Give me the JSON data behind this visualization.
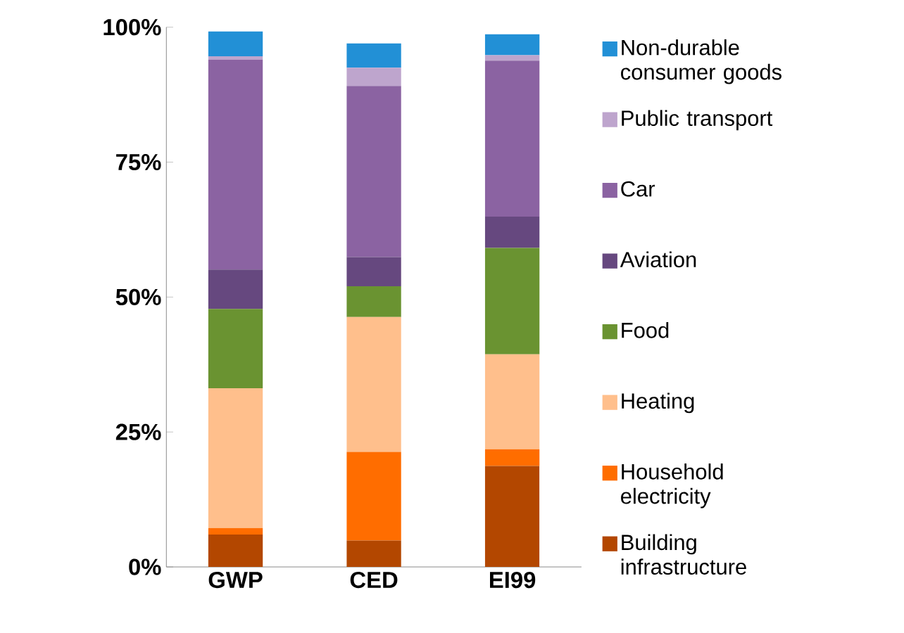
{
  "chart_data": {
    "type": "bar",
    "stacked": true,
    "categories": [
      "GWP",
      "CED",
      "EI99"
    ],
    "ylim": [
      0,
      100
    ],
    "yticks": [
      {
        "value": 0,
        "label": "0%"
      },
      {
        "value": 25,
        "label": "25%"
      },
      {
        "value": 50,
        "label": "50%"
      },
      {
        "value": 75,
        "label": "75%"
      },
      {
        "value": 100,
        "label": "100%"
      }
    ],
    "legend": "right",
    "grid": false,
    "series": [
      {
        "name": "Building infrastructure",
        "color": "#b34700",
        "values": [
          6.0,
          4.9,
          18.7
        ]
      },
      {
        "name": "Household electricity",
        "color": "#ff6d00",
        "values": [
          1.2,
          16.4,
          3.1
        ]
      },
      {
        "name": "Heating",
        "color": "#ffbf8c",
        "values": [
          25.9,
          25.0,
          17.6
        ]
      },
      {
        "name": "Food",
        "color": "#6a9331",
        "values": [
          14.7,
          5.7,
          19.7
        ]
      },
      {
        "name": "Aviation",
        "color": "#66487f",
        "values": [
          7.3,
          5.4,
          5.8
        ]
      },
      {
        "name": "Car",
        "color": "#8b63a2",
        "values": [
          38.9,
          31.7,
          28.9
        ]
      },
      {
        "name": "Public transport",
        "color": "#bea5cd",
        "values": [
          0.6,
          3.4,
          1.0
        ]
      },
      {
        "name": "Non-durable consumer goods",
        "color": "#2290d6",
        "values": [
          4.6,
          4.5,
          3.9
        ]
      }
    ]
  }
}
